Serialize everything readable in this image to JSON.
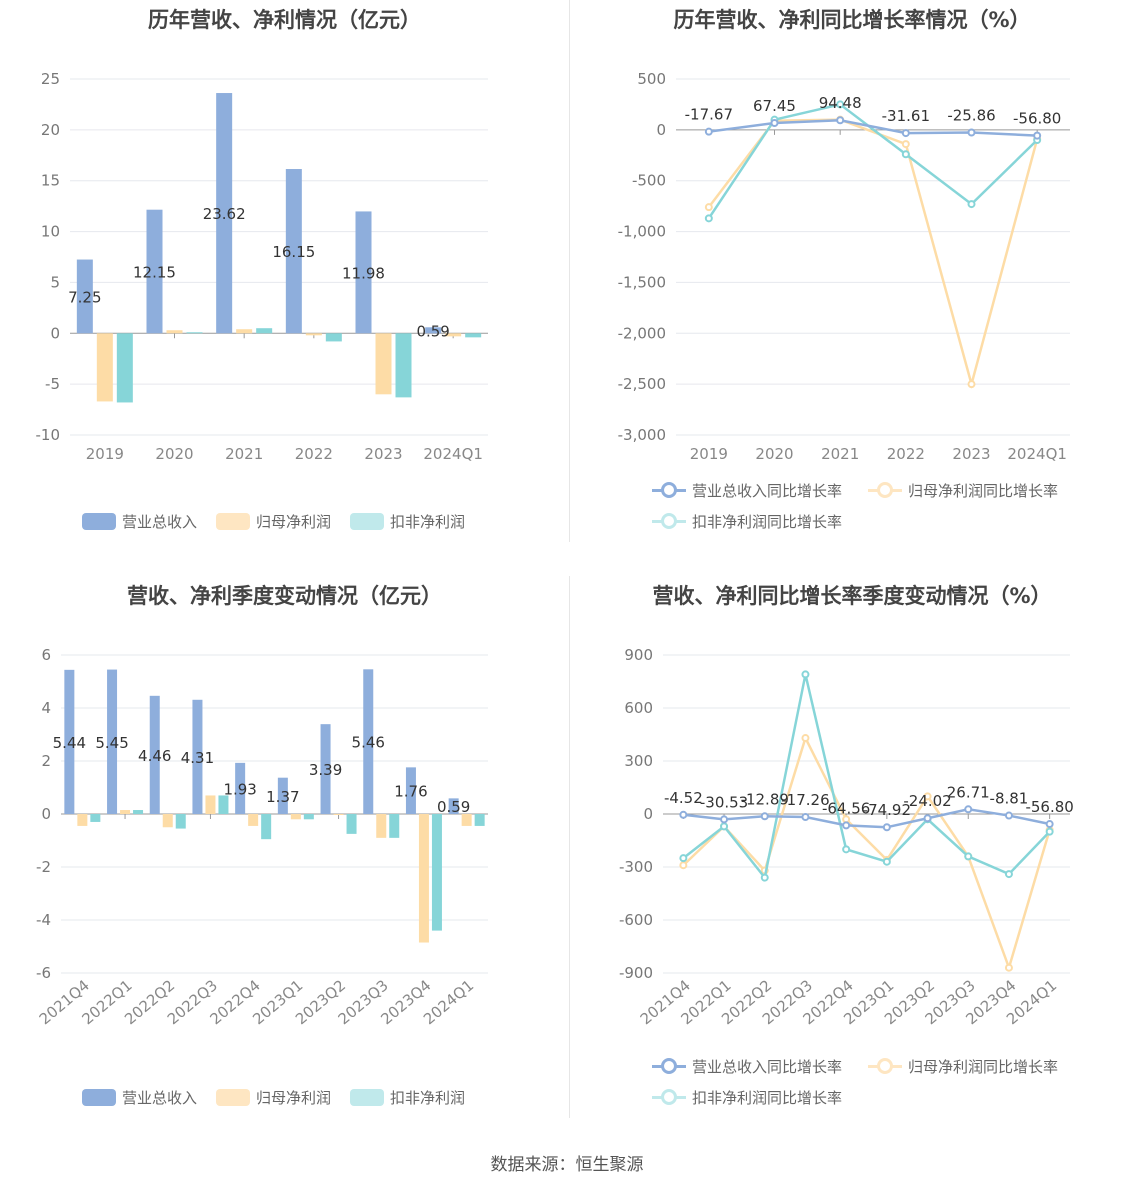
{
  "source_text": "数据来源：恒生聚源",
  "colors": {
    "revenue": "#8eaedc",
    "net_profit": "#fddca6",
    "deducted": "#86d5d8",
    "line_revenue": "#8eaedc",
    "line_net": "#fddca6",
    "line_deducted": "#86d5d8"
  },
  "chart_data": [
    {
      "type": "bar",
      "title": "历年营收、净利情况（亿元）",
      "categories": [
        "2019",
        "2020",
        "2021",
        "2022",
        "2023",
        "2024Q1"
      ],
      "ylim": [
        -10,
        25
      ],
      "yticks": [
        25,
        20,
        15,
        10,
        5,
        0,
        -5,
        -10
      ],
      "series": [
        {
          "name": "营业总收入",
          "values": [
            7.25,
            12.15,
            23.62,
            16.15,
            11.98,
            0.59
          ]
        },
        {
          "name": "归母净利润",
          "values": [
            -6.7,
            0.3,
            0.4,
            -0.2,
            -6.0,
            -0.3
          ]
        },
        {
          "name": "扣非净利润",
          "values": [
            -6.8,
            0.1,
            0.5,
            -0.8,
            -6.3,
            -0.4
          ]
        }
      ],
      "labels": [
        "7.25",
        "12.15",
        "23.62",
        "16.15",
        "11.98",
        "0.59"
      ],
      "grid": true,
      "legend": "bottom"
    },
    {
      "type": "line",
      "title": "历年营收、净利同比增长率情况（%）",
      "categories": [
        "2019",
        "2020",
        "2021",
        "2022",
        "2023",
        "2024Q1"
      ],
      "ylim": [
        -3000,
        500
      ],
      "yticks": [
        "500",
        "0",
        "-500",
        "-1,000",
        "-1,500",
        "-2,000",
        "-2,500",
        "-3,000"
      ],
      "ytick_values": [
        500,
        0,
        -500,
        -1000,
        -1500,
        -2000,
        -2500,
        -3000
      ],
      "series": [
        {
          "name": "营业总收入同比增长率",
          "values": [
            -17.67,
            67.45,
            94.48,
            -31.61,
            -25.86,
            -56.8
          ]
        },
        {
          "name": "归母净利润同比增长率",
          "values": [
            -760,
            90,
            100,
            -140,
            -2500,
            -90
          ]
        },
        {
          "name": "扣非净利润同比增长率",
          "values": [
            -870,
            100,
            250,
            -240,
            -730,
            -100
          ]
        }
      ],
      "labels": [
        "-17.67",
        "67.45",
        "94.48",
        "-31.61",
        "-25.86",
        "-56.80"
      ],
      "grid": true,
      "legend": "bottom"
    },
    {
      "type": "bar",
      "title": "营收、净利季度变动情况（亿元）",
      "categories": [
        "2021Q4",
        "2022Q1",
        "2022Q2",
        "2022Q3",
        "2022Q4",
        "2023Q1",
        "2023Q2",
        "2023Q3",
        "2023Q4",
        "2024Q1"
      ],
      "ylim": [
        -6,
        6
      ],
      "yticks": [
        6,
        4,
        2,
        0,
        -2,
        -4,
        -6
      ],
      "series": [
        {
          "name": "营业总收入",
          "values": [
            5.44,
            5.45,
            4.46,
            4.31,
            1.93,
            1.37,
            3.39,
            5.46,
            1.76,
            0.59
          ]
        },
        {
          "name": "归母净利润",
          "values": [
            -0.45,
            0.15,
            -0.5,
            0.7,
            -0.45,
            -0.2,
            0.0,
            -0.9,
            -4.85,
            -0.45
          ]
        },
        {
          "name": "扣非净利润",
          "values": [
            -0.3,
            0.15,
            -0.55,
            0.7,
            -0.95,
            -0.2,
            -0.75,
            -0.9,
            -4.4,
            -0.45
          ]
        }
      ],
      "labels": [
        "5.44",
        "5.45",
        "4.46",
        "4.31",
        "1.93",
        "1.37",
        "3.39",
        "5.46",
        "1.76",
        "0.59"
      ],
      "grid": true,
      "legend": "bottom"
    },
    {
      "type": "line",
      "title": "营收、净利同比增长率季度变动情况（%）",
      "categories": [
        "2021Q4",
        "2022Q1",
        "2022Q2",
        "2022Q3",
        "2022Q4",
        "2023Q1",
        "2023Q2",
        "2023Q3",
        "2023Q4",
        "2024Q1"
      ],
      "ylim": [
        -900,
        900
      ],
      "yticks": [
        "900",
        "600",
        "300",
        "0",
        "-300",
        "-600",
        "-900"
      ],
      "ytick_values": [
        900,
        600,
        300,
        0,
        -300,
        -600,
        -900
      ],
      "series": [
        {
          "name": "营业总收入同比增长率",
          "values": [
            -4.52,
            -30.53,
            -12.89,
            -17.26,
            -64.56,
            -74.92,
            -24.02,
            26.71,
            -8.81,
            -56.8
          ]
        },
        {
          "name": "归母净利润同比增长率",
          "values": [
            -290,
            -70,
            -320,
            430,
            -30,
            -260,
            100,
            -240,
            -870,
            -90
          ]
        },
        {
          "name": "扣非净利润同比增长率",
          "values": [
            -250,
            -70,
            -360,
            790,
            -200,
            -270,
            -30,
            -240,
            -340,
            -100
          ]
        }
      ],
      "labels": [
        "-4.52",
        "-30.53",
        "-12.89",
        "-17.26",
        "-64.56",
        "-74.92",
        "-24.02",
        "26.71",
        "-8.81",
        "-56.80"
      ],
      "grid": true,
      "legend": "bottom"
    }
  ]
}
